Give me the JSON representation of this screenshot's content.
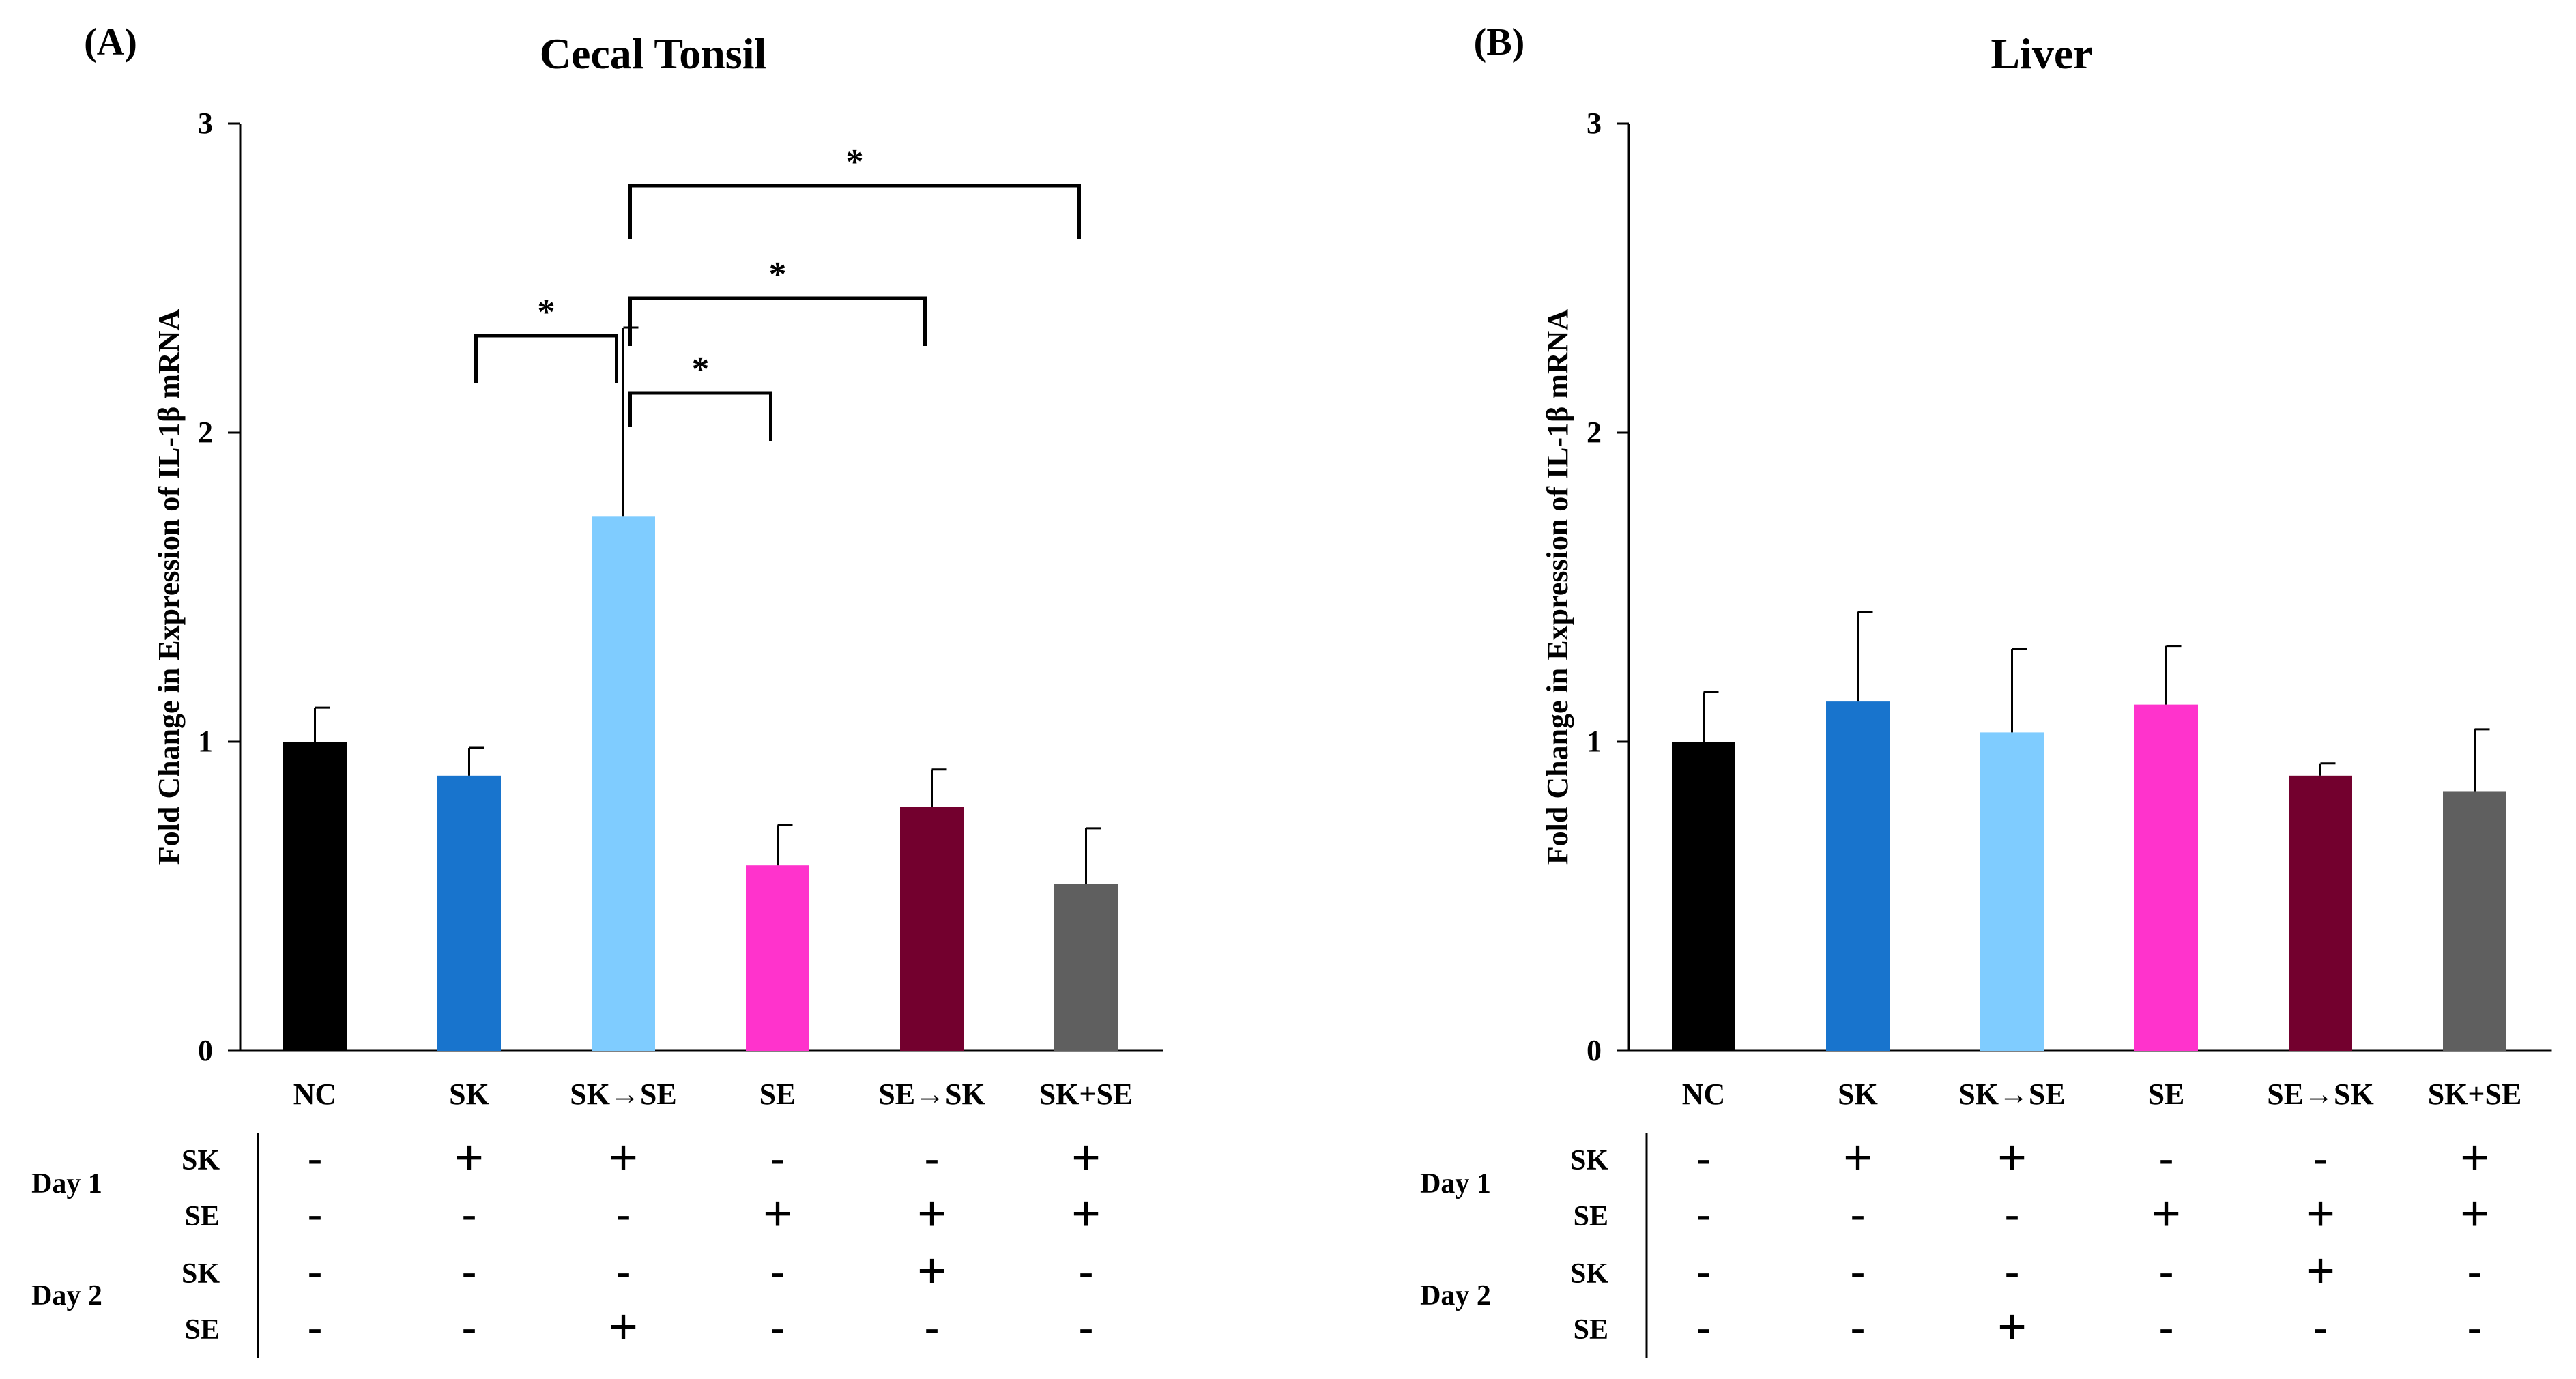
{
  "chart_data": [
    {
      "type": "bar",
      "panel": "(A)",
      "title": "Cecal Tonsil",
      "xlabel": "",
      "ylabel": "Fold Change in Expression of IL-1β mRNA",
      "ylim": [
        0,
        3
      ],
      "yticks": [
        "0",
        "1",
        "2",
        "3"
      ],
      "categories": [
        "NC",
        "SK",
        "SK→SE",
        "SE",
        "SE→SK",
        "SK+SE"
      ],
      "values": [
        1.0,
        0.89,
        1.73,
        0.6,
        0.79,
        0.54
      ],
      "errors": [
        0.11,
        0.09,
        0.61,
        0.13,
        0.12,
        0.18
      ],
      "colors": [
        "#000000",
        "#1874CD",
        "#7FCCFF",
        "#FF33CC",
        "#73002E",
        "#5F5F5F"
      ],
      "significance": [
        {
          "from": "SK",
          "to": "SK→SE",
          "label": "*"
        },
        {
          "from": "SK→SE",
          "to": "SE",
          "label": "*"
        },
        {
          "from": "SK→SE",
          "to": "SE→SK",
          "label": "*"
        },
        {
          "from": "SK→SE",
          "to": "SK+SE",
          "label": "*"
        }
      ]
    },
    {
      "type": "bar",
      "panel": "(B)",
      "title": "Liver",
      "xlabel": "",
      "ylabel": "Fold Change in Expression of IL-1β mRNA",
      "ylim": [
        0,
        3
      ],
      "yticks": [
        "0",
        "1",
        "2",
        "3"
      ],
      "categories": [
        "NC",
        "SK",
        "SK→SE",
        "SE",
        "SE→SK",
        "SK+SE"
      ],
      "values": [
        1.0,
        1.13,
        1.03,
        1.12,
        0.89,
        0.84
      ],
      "errors": [
        0.16,
        0.29,
        0.27,
        0.19,
        0.04,
        0.2
      ],
      "colors": [
        "#000000",
        "#1874CD",
        "#7FCCFF",
        "#FF33CC",
        "#73002E",
        "#5F5F5F"
      ],
      "significance": []
    }
  ],
  "treatment_table": {
    "days": [
      "Day 1",
      "Day 2"
    ],
    "rows": [
      {
        "day": "Day 1",
        "agent": "SK",
        "marks": [
          "-",
          "+",
          "+",
          "-",
          "-",
          "+"
        ]
      },
      {
        "day": "Day 1",
        "agent": "SE",
        "marks": [
          "-",
          "-",
          "-",
          "+",
          "+",
          "+"
        ]
      },
      {
        "day": "Day 2",
        "agent": "SK",
        "marks": [
          "-",
          "-",
          "-",
          "-",
          "+",
          "-"
        ]
      },
      {
        "day": "Day 2",
        "agent": "SE",
        "marks": [
          "-",
          "-",
          "+",
          "-",
          "-",
          "-"
        ]
      }
    ]
  }
}
